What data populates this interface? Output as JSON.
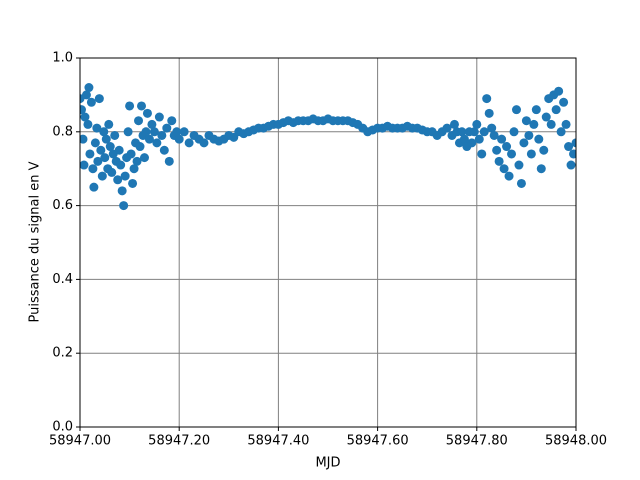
{
  "chart_data": {
    "type": "scatter",
    "xlabel": "MJD",
    "ylabel": "Puissance du signal en V",
    "color": "#1f77b4",
    "grid": true,
    "xlim": [
      58947,
      58948
    ],
    "ylim": [
      0,
      1
    ],
    "xticks": [
      {
        "value": 58947,
        "label": "58947.00"
      },
      {
        "value": 58947.2,
        "label": "58947.20"
      },
      {
        "value": 58947.4,
        "label": "58947.40"
      },
      {
        "value": 58947.6,
        "label": "58947.60"
      },
      {
        "value": 58947.8,
        "label": "58947.80"
      },
      {
        "value": 58948,
        "label": "58948.00"
      }
    ],
    "yticks": [
      {
        "value": 0,
        "label": "0.0"
      },
      0.2,
      0.4,
      0.6,
      0.8,
      {
        "value": 1,
        "label": "1.0"
      }
    ],
    "x": [
      58947.0,
      58947.003,
      58947.006,
      58947.008,
      58947.01,
      58947.013,
      58947.016,
      58947.018,
      58947.02,
      58947.023,
      58947.026,
      58947.028,
      58947.031,
      58947.034,
      58947.036,
      58947.039,
      58947.042,
      58947.045,
      58947.048,
      58947.05,
      58947.053,
      58947.056,
      58947.058,
      58947.061,
      58947.064,
      58947.067,
      58947.07,
      58947.073,
      58947.076,
      58947.079,
      58947.082,
      58947.085,
      58947.088,
      58947.091,
      58947.094,
      58947.097,
      58947.1,
      58947.103,
      58947.106,
      58947.109,
      58947.112,
      58947.115,
      58947.118,
      58947.121,
      58947.124,
      58947.127,
      58947.13,
      58947.133,
      58947.136,
      58947.14,
      58947.145,
      58947.15,
      58947.155,
      58947.16,
      58947.165,
      58947.17,
      58947.175,
      58947.18,
      58947.185,
      58947.19,
      58947.195,
      58947.2,
      58947.21,
      58947.22,
      58947.23,
      58947.24,
      58947.25,
      58947.26,
      58947.27,
      58947.28,
      58947.29,
      58947.3,
      58947.31,
      58947.32,
      58947.33,
      58947.34,
      58947.35,
      58947.36,
      58947.37,
      58947.38,
      58947.39,
      58947.4,
      58947.41,
      58947.42,
      58947.43,
      58947.44,
      58947.45,
      58947.46,
      58947.47,
      58947.48,
      58947.49,
      58947.5,
      58947.51,
      58947.52,
      58947.53,
      58947.54,
      58947.55,
      58947.56,
      58947.57,
      58947.58,
      58947.59,
      58947.6,
      58947.61,
      58947.62,
      58947.63,
      58947.64,
      58947.65,
      58947.66,
      58947.67,
      58947.68,
      58947.69,
      58947.7,
      58947.71,
      58947.72,
      58947.73,
      58947.74,
      58947.75,
      58947.755,
      58947.76,
      58947.765,
      58947.77,
      58947.775,
      58947.78,
      58947.785,
      58947.79,
      58947.795,
      58947.8,
      58947.805,
      58947.81,
      58947.815,
      58947.82,
      58947.825,
      58947.83,
      58947.835,
      58947.84,
      58947.845,
      58947.85,
      58947.855,
      58947.86,
      58947.865,
      58947.87,
      58947.875,
      58947.88,
      58947.885,
      58947.89,
      58947.895,
      58947.9,
      58947.905,
      58947.91,
      58947.915,
      58947.92,
      58947.925,
      58947.93,
      58947.935,
      58947.94,
      58947.945,
      58947.95,
      58947.955,
      58947.96,
      58947.965,
      58947.97,
      58947.975,
      58947.98,
      58947.985,
      58947.99,
      58947.995,
      58948.0
    ],
    "values": [
      0.89,
      0.86,
      0.78,
      0.71,
      0.84,
      0.9,
      0.82,
      0.92,
      0.74,
      0.88,
      0.7,
      0.65,
      0.77,
      0.81,
      0.72,
      0.89,
      0.75,
      0.68,
      0.8,
      0.73,
      0.78,
      0.7,
      0.82,
      0.76,
      0.69,
      0.74,
      0.79,
      0.72,
      0.67,
      0.75,
      0.71,
      0.64,
      0.6,
      0.68,
      0.73,
      0.8,
      0.87,
      0.74,
      0.66,
      0.7,
      0.77,
      0.72,
      0.83,
      0.76,
      0.87,
      0.79,
      0.73,
      0.8,
      0.85,
      0.78,
      0.82,
      0.8,
      0.77,
      0.84,
      0.79,
      0.75,
      0.81,
      0.72,
      0.83,
      0.79,
      0.8,
      0.78,
      0.8,
      0.77,
      0.79,
      0.78,
      0.77,
      0.79,
      0.78,
      0.775,
      0.78,
      0.79,
      0.785,
      0.8,
      0.795,
      0.8,
      0.805,
      0.81,
      0.81,
      0.815,
      0.82,
      0.82,
      0.825,
      0.83,
      0.825,
      0.83,
      0.83,
      0.83,
      0.835,
      0.83,
      0.83,
      0.835,
      0.83,
      0.83,
      0.83,
      0.83,
      0.825,
      0.82,
      0.81,
      0.8,
      0.805,
      0.81,
      0.81,
      0.815,
      0.81,
      0.81,
      0.81,
      0.815,
      0.81,
      0.81,
      0.805,
      0.8,
      0.8,
      0.79,
      0.8,
      0.81,
      0.79,
      0.82,
      0.8,
      0.77,
      0.8,
      0.78,
      0.76,
      0.8,
      0.77,
      0.8,
      0.82,
      0.78,
      0.74,
      0.8,
      0.89,
      0.85,
      0.81,
      0.79,
      0.75,
      0.72,
      0.78,
      0.7,
      0.76,
      0.68,
      0.74,
      0.8,
      0.86,
      0.71,
      0.66,
      0.77,
      0.83,
      0.79,
      0.74,
      0.82,
      0.86,
      0.78,
      0.7,
      0.75,
      0.84,
      0.89,
      0.82,
      0.9,
      0.86,
      0.91,
      0.8,
      0.88,
      0.82,
      0.76,
      0.71,
      0.74,
      0.77
    ]
  }
}
